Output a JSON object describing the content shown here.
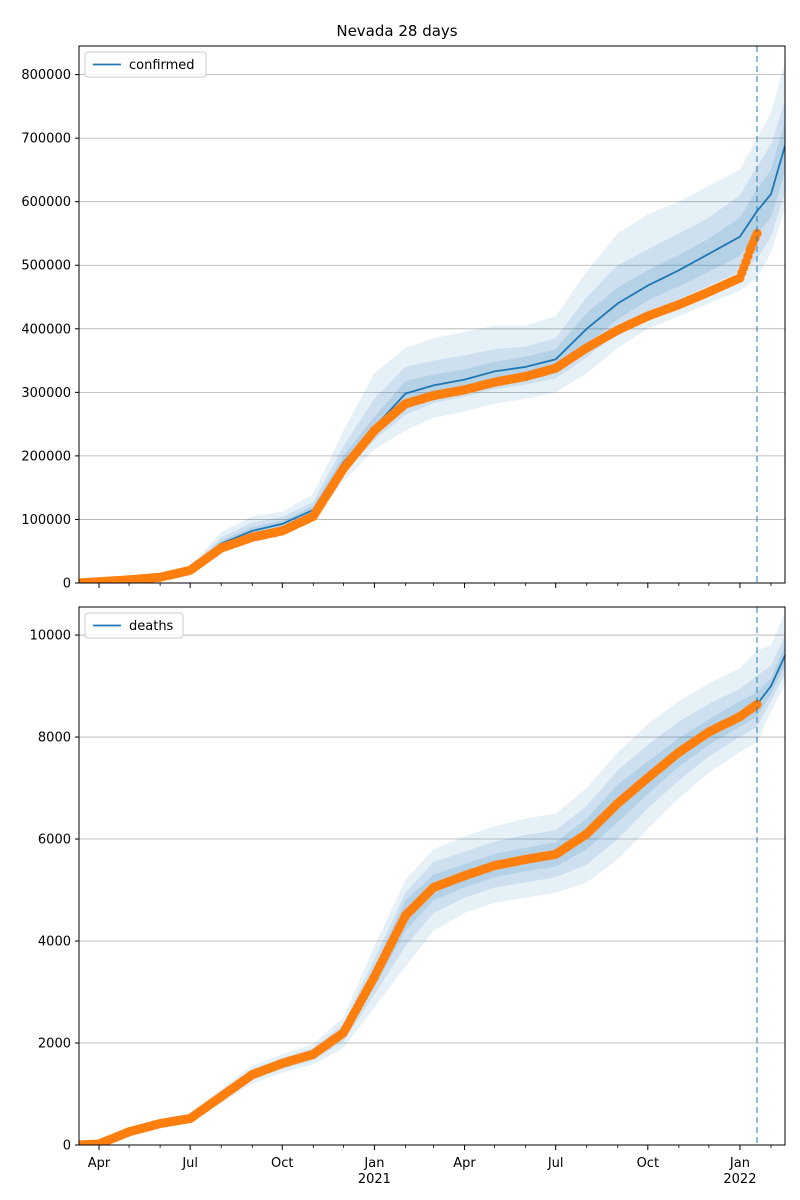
{
  "figure_title": "Nevada 28 days",
  "colors": {
    "model": "#1f77b4",
    "observed": "#ff7f0e",
    "band": "#1f77b4",
    "grid": "#b0b0b0",
    "cutoff": "#1f77b4"
  },
  "time_axis": {
    "start": "2020-03-12",
    "end": "2022-02-15",
    "major_ticks": [
      {
        "date": "2020-04-01",
        "label": "Apr",
        "sublabel": ""
      },
      {
        "date": "2020-07-01",
        "label": "Jul",
        "sublabel": ""
      },
      {
        "date": "2020-10-01",
        "label": "Oct",
        "sublabel": ""
      },
      {
        "date": "2021-01-01",
        "label": "Jan",
        "sublabel": "2021"
      },
      {
        "date": "2021-04-01",
        "label": "Apr",
        "sublabel": ""
      },
      {
        "date": "2021-07-01",
        "label": "Jul",
        "sublabel": ""
      },
      {
        "date": "2021-10-01",
        "label": "Oct",
        "sublabel": ""
      },
      {
        "date": "2022-01-01",
        "label": "Jan",
        "sublabel": "2022"
      }
    ],
    "minor_ticks": [
      "2020-05-01",
      "2020-06-01",
      "2020-08-01",
      "2020-09-01",
      "2020-11-01",
      "2020-12-01",
      "2021-02-01",
      "2021-03-01",
      "2021-05-01",
      "2021-06-01",
      "2021-08-01",
      "2021-09-01",
      "2021-11-01",
      "2021-12-01",
      "2022-02-01"
    ],
    "forecast_cutoff": "2022-01-18"
  },
  "chart_data": [
    {
      "type": "line",
      "title": "Nevada 28 days",
      "legend": {
        "label": "confirmed",
        "placement": "upper-left"
      },
      "ylim": [
        0,
        845000
      ],
      "yticks": [
        0,
        100000,
        200000,
        300000,
        400000,
        500000,
        600000,
        700000,
        800000
      ],
      "grid": "horizontal",
      "model": [
        [
          "2020-03-12",
          0
        ],
        [
          "2020-05-01",
          6000
        ],
        [
          "2020-06-01",
          10000
        ],
        [
          "2020-07-01",
          22000
        ],
        [
          "2020-08-01",
          62000
        ],
        [
          "2020-09-01",
          82000
        ],
        [
          "2020-10-01",
          93000
        ],
        [
          "2020-11-01",
          115000
        ],
        [
          "2020-12-01",
          190000
        ],
        [
          "2021-01-01",
          245000
        ],
        [
          "2021-02-01",
          298000
        ],
        [
          "2021-03-01",
          311000
        ],
        [
          "2021-04-01",
          320000
        ],
        [
          "2021-05-01",
          333000
        ],
        [
          "2021-06-01",
          340000
        ],
        [
          "2021-07-01",
          352000
        ],
        [
          "2021-08-01",
          400000
        ],
        [
          "2021-09-01",
          440000
        ],
        [
          "2021-10-01",
          468000
        ],
        [
          "2021-11-01",
          492000
        ],
        [
          "2021-12-01",
          518000
        ],
        [
          "2022-01-01",
          545000
        ],
        [
          "2022-01-18",
          585000
        ],
        [
          "2022-02-01",
          612000
        ],
        [
          "2022-02-15",
          688000
        ]
      ],
      "bands": [
        {
          "opacity": 0.11,
          "lower": [
            0,
            4000,
            8000,
            19000,
            50000,
            68000,
            82000,
            100000,
            160000,
            210000,
            240000,
            260000,
            270000,
            282000,
            290000,
            300000,
            330000,
            370000,
            400000,
            420000,
            440000,
            460000,
            480000,
            520000,
            590000
          ],
          "upper": [
            0,
            8000,
            13000,
            27000,
            80000,
            105000,
            112000,
            140000,
            240000,
            330000,
            370000,
            385000,
            395000,
            405000,
            405000,
            420000,
            490000,
            550000,
            580000,
            600000,
            625000,
            650000,
            700000,
            740000,
            820000
          ]
        },
        {
          "opacity": 0.12,
          "lower": [
            0,
            5000,
            9000,
            20000,
            54000,
            73000,
            86000,
            106000,
            172000,
            225000,
            265000,
            283000,
            293000,
            305000,
            312000,
            322000,
            355000,
            395000,
            425000,
            446000,
            468000,
            490000,
            510000,
            545000,
            615000
          ],
          "upper": [
            0,
            7000,
            12000,
            25000,
            72000,
            95000,
            104000,
            128000,
            215000,
            290000,
            340000,
            350000,
            358000,
            368000,
            372000,
            385000,
            450000,
            500000,
            525000,
            550000,
            575000,
            610000,
            655000,
            690000,
            760000
          ]
        },
        {
          "opacity": 0.14,
          "lower": [
            0,
            5500,
            9500,
            21000,
            57000,
            77000,
            89000,
            110000,
            180000,
            235000,
            282000,
            297000,
            306000,
            318000,
            326000,
            337000,
            375000,
            415000,
            445000,
            467000,
            490000,
            515000,
            550000,
            575000,
            648000
          ],
          "upper": [
            0,
            6500,
            11000,
            23500,
            67000,
            88000,
            98000,
            121000,
            200000,
            262000,
            318000,
            328000,
            336000,
            348000,
            356000,
            368000,
            425000,
            465000,
            492000,
            516000,
            542000,
            575000,
            620000,
            650000,
            728000
          ]
        }
      ],
      "observed": [
        [
          "2020-03-12",
          0
        ],
        [
          "2020-05-01",
          5000
        ],
        [
          "2020-06-01",
          9000
        ],
        [
          "2020-07-01",
          20000
        ],
        [
          "2020-08-01",
          55000
        ],
        [
          "2020-09-01",
          72000
        ],
        [
          "2020-10-01",
          82000
        ],
        [
          "2020-11-01",
          105000
        ],
        [
          "2020-12-01",
          180000
        ],
        [
          "2021-01-01",
          240000
        ],
        [
          "2021-02-01",
          282000
        ],
        [
          "2021-03-01",
          295000
        ],
        [
          "2021-04-01",
          304000
        ],
        [
          "2021-05-01",
          316000
        ],
        [
          "2021-06-01",
          325000
        ],
        [
          "2021-07-01",
          338000
        ],
        [
          "2021-08-01",
          370000
        ],
        [
          "2021-09-01",
          398000
        ],
        [
          "2021-10-01",
          420000
        ],
        [
          "2021-11-01",
          438000
        ],
        [
          "2021-12-01",
          458000
        ],
        [
          "2022-01-01",
          480000
        ],
        [
          "2022-01-07",
          505000
        ],
        [
          "2022-01-12",
          528000
        ],
        [
          "2022-01-18",
          550000
        ]
      ]
    },
    {
      "type": "line",
      "legend": {
        "label": "deaths",
        "placement": "upper-left"
      },
      "ylim": [
        0,
        10550
      ],
      "yticks": [
        0,
        2000,
        4000,
        6000,
        8000,
        10000
      ],
      "grid": "horizontal",
      "model": [
        [
          "2020-03-12",
          0
        ],
        [
          "2020-04-01",
          20
        ],
        [
          "2020-05-01",
          260
        ],
        [
          "2020-06-01",
          420
        ],
        [
          "2020-07-01",
          520
        ],
        [
          "2020-08-01",
          950
        ],
        [
          "2020-09-01",
          1380
        ],
        [
          "2020-10-01",
          1600
        ],
        [
          "2020-11-01",
          1780
        ],
        [
          "2020-12-01",
          2200
        ],
        [
          "2021-01-01",
          3300
        ],
        [
          "2021-02-01",
          4500
        ],
        [
          "2021-03-01",
          5050
        ],
        [
          "2021-04-01",
          5280
        ],
        [
          "2021-05-01",
          5480
        ],
        [
          "2021-06-01",
          5600
        ],
        [
          "2021-07-01",
          5700
        ],
        [
          "2021-08-01",
          6100
        ],
        [
          "2021-09-01",
          6700
        ],
        [
          "2021-10-01",
          7200
        ],
        [
          "2021-11-01",
          7700
        ],
        [
          "2021-12-01",
          8100
        ],
        [
          "2022-01-01",
          8450
        ],
        [
          "2022-01-18",
          8640
        ],
        [
          "2022-02-01",
          9000
        ],
        [
          "2022-02-15",
          9600
        ]
      ],
      "bands": [
        {
          "opacity": 0.11,
          "lower": [
            0,
            10,
            200,
            350,
            440,
            820,
            1200,
            1420,
            1580,
            1900,
            2700,
            3500,
            4200,
            4550,
            4750,
            4850,
            4950,
            5150,
            5600,
            6200,
            6800,
            7300,
            7700,
            7900,
            8500,
            9050
          ],
          "upper": [
            0,
            30,
            320,
            490,
            600,
            1100,
            1560,
            1780,
            1980,
            2500,
            3900,
            5200,
            5800,
            6050,
            6250,
            6400,
            6500,
            7000,
            7700,
            8250,
            8700,
            9050,
            9350,
            9700,
            9800,
            10450
          ]
        },
        {
          "opacity": 0.12,
          "lower": [
            0,
            14,
            225,
            380,
            470,
            870,
            1270,
            1490,
            1660,
            2030,
            2950,
            3900,
            4550,
            4850,
            5050,
            5150,
            5250,
            5500,
            6000,
            6600,
            7150,
            7620,
            8000,
            8200,
            8700,
            9250
          ],
          "upper": [
            0,
            26,
            295,
            460,
            570,
            1030,
            1490,
            1710,
            1900,
            2370,
            3650,
            4950,
            5550,
            5750,
            5950,
            6080,
            6170,
            6650,
            7350,
            7850,
            8300,
            8650,
            8950,
            9200,
            9400,
            10000
          ]
        },
        {
          "opacity": 0.14,
          "lower": [
            0,
            17,
            240,
            400,
            490,
            910,
            1320,
            1540,
            1720,
            2110,
            3100,
            4200,
            4800,
            5050,
            5250,
            5370,
            5460,
            5800,
            6330,
            6880,
            7420,
            7850,
            8200,
            8400,
            8850,
            9400
          ],
          "upper": [
            0,
            23,
            280,
            440,
            550,
            990,
            1440,
            1660,
            1840,
            2290,
            3500,
            4800,
            5300,
            5510,
            5710,
            5830,
            5940,
            6400,
            7070,
            7520,
            7980,
            8350,
            8700,
            8880,
            9150,
            9800
          ]
        }
      ],
      "observed": [
        [
          "2020-03-12",
          0
        ],
        [
          "2020-04-01",
          20
        ],
        [
          "2020-05-01",
          260
        ],
        [
          "2020-06-01",
          420
        ],
        [
          "2020-07-01",
          520
        ],
        [
          "2020-08-01",
          950
        ],
        [
          "2020-09-01",
          1380
        ],
        [
          "2020-10-01",
          1600
        ],
        [
          "2020-11-01",
          1780
        ],
        [
          "2020-12-01",
          2200
        ],
        [
          "2021-01-01",
          3300
        ],
        [
          "2021-02-01",
          4500
        ],
        [
          "2021-03-01",
          5050
        ],
        [
          "2021-04-01",
          5280
        ],
        [
          "2021-05-01",
          5480
        ],
        [
          "2021-06-01",
          5600
        ],
        [
          "2021-07-01",
          5700
        ],
        [
          "2021-08-01",
          6100
        ],
        [
          "2021-09-01",
          6700
        ],
        [
          "2021-10-01",
          7200
        ],
        [
          "2021-11-01",
          7700
        ],
        [
          "2021-12-01",
          8100
        ],
        [
          "2022-01-01",
          8400
        ],
        [
          "2022-01-18",
          8640
        ]
      ]
    }
  ]
}
